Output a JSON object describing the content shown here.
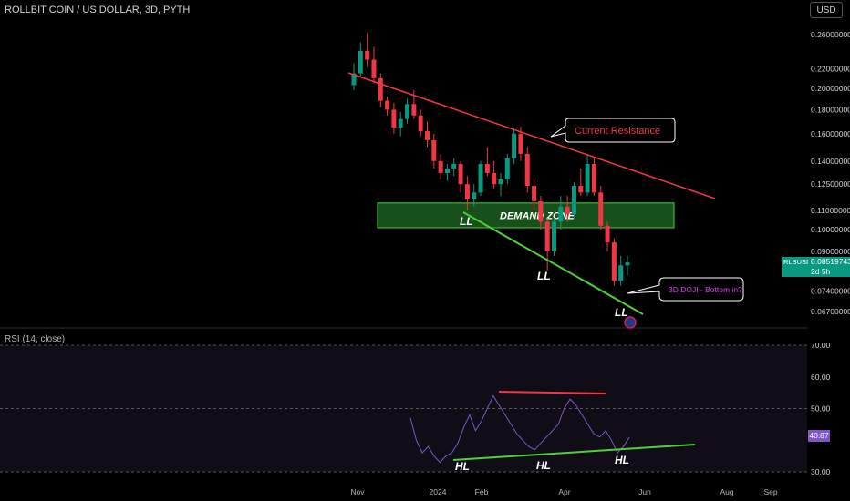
{
  "header": {
    "title": "ROLLBIT COIN / US DOLLAR, 3D, PYTH"
  },
  "currency_button": "USD",
  "price_tag": {
    "symbol": "RLBUSD",
    "price": "0.08519743",
    "countdown": "2d 5h"
  },
  "rsi_panel": {
    "label": "RSI (14, close)",
    "value_tag": "40.87"
  },
  "annotations": {
    "current_resistance": "Current Resistance",
    "demand_zone": "DEMAND ZONE",
    "doji_note": "3D DOJI - Bottom in?",
    "ll_labels": [
      "LL",
      "LL",
      "LL"
    ],
    "hl_labels": [
      "HL",
      "HL",
      "HL"
    ]
  },
  "colors": {
    "bull": "#089981",
    "bear": "#f23645",
    "resistance": "#f23645",
    "support": "#4cd137",
    "demand_fill": "#1b5e20",
    "rsi_line": "#7e57c2",
    "note_text_doji": "#e040fb"
  },
  "chart_data": [
    {
      "type": "candlestick",
      "title": "ROLLBIT COIN / US DOLLAR, 3D, PYTH",
      "y_scale": "log",
      "y_ticks": [
        "0.26000000",
        "0.22000000",
        "0.20000000",
        "0.18000000",
        "0.16000000",
        "0.14000000",
        "0.12500000",
        "0.11000000",
        "0.10000000",
        "0.09000000",
        "0.07400000",
        "0.06700000"
      ],
      "x_ticks": [
        "Nov",
        "2024",
        "Feb",
        "Apr",
        "Jun",
        "Aug",
        "Sep"
      ],
      "last_price": 0.08519743,
      "demand_zone": [
        0.101,
        0.114
      ],
      "ohlc": [
        [
          0.203,
          0.226,
          0.198,
          0.215
        ],
        [
          0.215,
          0.25,
          0.212,
          0.24
        ],
        [
          0.24,
          0.262,
          0.222,
          0.23
        ],
        [
          0.23,
          0.245,
          0.205,
          0.21
        ],
        [
          0.21,
          0.215,
          0.182,
          0.188
        ],
        [
          0.188,
          0.192,
          0.175,
          0.18
        ],
        [
          0.18,
          0.186,
          0.16,
          0.165
        ],
        [
          0.165,
          0.178,
          0.158,
          0.172
        ],
        [
          0.172,
          0.19,
          0.168,
          0.185
        ],
        [
          0.185,
          0.198,
          0.172,
          0.175
        ],
        [
          0.175,
          0.18,
          0.158,
          0.162
        ],
        [
          0.162,
          0.17,
          0.15,
          0.155
        ],
        [
          0.155,
          0.16,
          0.135,
          0.14
        ],
        [
          0.14,
          0.145,
          0.128,
          0.132
        ],
        [
          0.132,
          0.138,
          0.127,
          0.135
        ],
        [
          0.135,
          0.142,
          0.13,
          0.138
        ],
        [
          0.138,
          0.14,
          0.12,
          0.125
        ],
        [
          0.125,
          0.13,
          0.11,
          0.116
        ],
        [
          0.116,
          0.125,
          0.112,
          0.12
        ],
        [
          0.12,
          0.14,
          0.118,
          0.138
        ],
        [
          0.138,
          0.15,
          0.13,
          0.132
        ],
        [
          0.132,
          0.14,
          0.122,
          0.125
        ],
        [
          0.125,
          0.132,
          0.118,
          0.128
        ],
        [
          0.128,
          0.145,
          0.125,
          0.142
        ],
        [
          0.142,
          0.165,
          0.138,
          0.16
        ],
        [
          0.16,
          0.166,
          0.14,
          0.145
        ],
        [
          0.145,
          0.15,
          0.12,
          0.124
        ],
        [
          0.124,
          0.128,
          0.11,
          0.115
        ],
        [
          0.115,
          0.118,
          0.1,
          0.104
        ],
        [
          0.104,
          0.106,
          0.082,
          0.09
        ],
        [
          0.09,
          0.106,
          0.088,
          0.104
        ],
        [
          0.104,
          0.118,
          0.1,
          0.112
        ],
        [
          0.112,
          0.118,
          0.104,
          0.108
        ],
        [
          0.108,
          0.126,
          0.106,
          0.124
        ],
        [
          0.124,
          0.135,
          0.118,
          0.12
        ],
        [
          0.12,
          0.144,
          0.118,
          0.138
        ],
        [
          0.138,
          0.142,
          0.118,
          0.12
        ],
        [
          0.12,
          0.124,
          0.1,
          0.102
        ],
        [
          0.102,
          0.104,
          0.09,
          0.094
        ],
        [
          0.094,
          0.096,
          0.076,
          0.078
        ],
        [
          0.078,
          0.088,
          0.076,
          0.084
        ],
        [
          0.084,
          0.088,
          0.08,
          0.0852
        ]
      ]
    },
    {
      "type": "line",
      "title": "RSI (14, close)",
      "ylim": [
        30,
        70
      ],
      "y_ticks": [
        "70.00",
        "60.00",
        "50.00",
        "30.00"
      ],
      "series": [
        {
          "name": "RSI (14, close)",
          "values": [
            47,
            40,
            36,
            38,
            35,
            33,
            35,
            36,
            39,
            44,
            48,
            43,
            46,
            50,
            54,
            51,
            48,
            45,
            42,
            40,
            38,
            37,
            39,
            41,
            43,
            45,
            50,
            53,
            51,
            48,
            45,
            42,
            41,
            43,
            40,
            36,
            38,
            40.87
          ]
        }
      ]
    }
  ]
}
